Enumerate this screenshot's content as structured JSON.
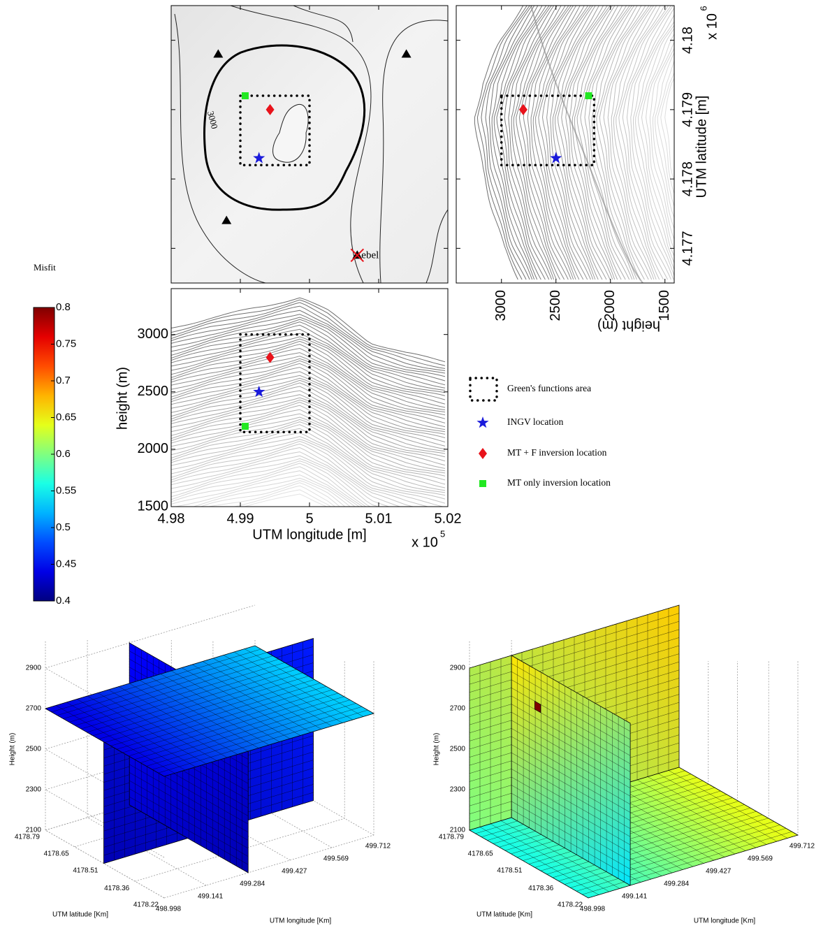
{
  "chart_data": [
    {
      "type": "map",
      "xlim": [
        4.98,
        5.02
      ],
      "ylim": [
        4.1765,
        4.1805
      ],
      "xticks": [
        4.98,
        4.99,
        5,
        5.01,
        5.02
      ],
      "yticks": [
        4.177,
        4.178,
        4.179,
        4.18
      ],
      "contour_label": "3000",
      "stations": {
        "color": "#000000",
        "x": [
          4.9868,
          5.014,
          4.988
        ],
        "y": [
          4.1798,
          4.1798,
          4.1774
        ]
      },
      "site": {
        "label": "ebel",
        "color": "#e8131b",
        "x": 5.0069,
        "y": 4.1769
      },
      "series": [
        {
          "name": "Green's functions area",
          "color": "#000000",
          "marker": "dotted-box",
          "x": [
            4.99,
            5
          ],
          "y": [
            4.1782,
            4.1792
          ]
        },
        {
          "name": "INGV location",
          "color": "#1a1adb",
          "marker": "star",
          "x": [
            4.9927
          ],
          "y": [
            4.1783
          ]
        },
        {
          "name": "MT + F inversion location",
          "color": "#e8131b",
          "marker": "diamond",
          "x": [
            4.9943
          ],
          "y": [
            4.179
          ]
        },
        {
          "name": "MT only inversion location",
          "color": "#22e822",
          "marker": "square",
          "x": [
            4.9907
          ],
          "y": [
            4.1792
          ]
        }
      ]
    },
    {
      "type": "section",
      "orientation": "vertical",
      "xlim": [
        3415,
        1415
      ],
      "ylim": [
        4.1765,
        4.1805
      ],
      "xticks": [
        3000,
        2500,
        2000,
        1500
      ],
      "yticks": [
        4.177,
        4.178,
        4.179,
        4.18
      ],
      "xlabel": "height (m)",
      "ylabel": "UTM latitude [m]",
      "scale_label": "x 10",
      "scale_exponent": "6",
      "series": [
        {
          "color": "#000000",
          "marker": "dotted-box",
          "x": [
            3000,
            2150
          ],
          "y": [
            4.1782,
            4.1792
          ]
        },
        {
          "color": "#1a1adb",
          "marker": "star",
          "x": [
            2500
          ],
          "y": [
            4.1783
          ]
        },
        {
          "color": "#e8131b",
          "marker": "diamond",
          "x": [
            2800
          ],
          "y": [
            4.179
          ]
        },
        {
          "color": "#22e822",
          "marker": "square",
          "x": [
            2200
          ],
          "y": [
            4.1792
          ]
        }
      ]
    },
    {
      "type": "section",
      "orientation": "horizontal",
      "xlim": [
        4.98,
        5.02
      ],
      "ylim": [
        1500,
        3400
      ],
      "xticks": [
        4.98,
        4.99,
        5,
        5.01,
        5.02
      ],
      "yticks": [
        1500,
        2000,
        2500,
        3000
      ],
      "xlabel": "UTM longitude [m]",
      "ylabel": "height (m)",
      "scale_label": "x 10",
      "scale_exponent": "5",
      "series": [
        {
          "color": "#000000",
          "marker": "dotted-box",
          "x": [
            4.99,
            5
          ],
          "y": [
            2150,
            3000
          ]
        },
        {
          "color": "#1a1adb",
          "marker": "star",
          "x": [
            4.9927
          ],
          "y": [
            2500
          ]
        },
        {
          "color": "#e8131b",
          "marker": "diamond",
          "x": [
            4.9943
          ],
          "y": [
            2800
          ]
        },
        {
          "color": "#22e822",
          "marker": "square",
          "x": [
            4.9907
          ],
          "y": [
            2200
          ]
        }
      ]
    },
    {
      "type": "colorbar",
      "title": "Misfit",
      "lim": [
        0.4,
        0.8
      ],
      "ticks": [
        0.4,
        0.45,
        0.5,
        0.55,
        0.6,
        0.65,
        0.7,
        0.75,
        0.8
      ],
      "colormap": "jet"
    },
    {
      "type": "slices3d",
      "xlabel": "UTM longitude [Km]",
      "ylabel": "UTM latitude [Km]",
      "zlabel": "Height (m)",
      "xlim": [
        498.998,
        499.712
      ],
      "ylim": [
        4178.22,
        4178.79
      ],
      "zlim": [
        2100,
        2900
      ],
      "xticks": [
        498.998,
        499.141,
        499.284,
        499.427,
        499.569,
        499.712
      ],
      "yticks": [
        4178.22,
        4178.36,
        4178.51,
        4178.65,
        4178.79
      ],
      "zticks": [
        2100,
        2300,
        2500,
        2700,
        2900
      ],
      "slices": [
        {
          "axis": "y",
          "value": 4178.51,
          "misfit": [
            0.42,
            0.46
          ]
        },
        {
          "axis": "x",
          "value": 499.284,
          "misfit": [
            0.42,
            0.45
          ]
        },
        {
          "axis": "z",
          "value": 2700,
          "misfit": [
            0.44,
            0.53
          ]
        }
      ]
    },
    {
      "type": "slices3d",
      "xlabel": "UTM longitude [Km]",
      "ylabel": "UTM latitude [Km]",
      "zlabel": "Height (m)",
      "xlim": [
        498.998,
        499.712
      ],
      "ylim": [
        4178.22,
        4178.79
      ],
      "zlim": [
        2100,
        2900
      ],
      "xticks": [
        498.998,
        499.141,
        499.284,
        499.427,
        499.569,
        499.712
      ],
      "yticks": [
        4178.22,
        4178.36,
        4178.51,
        4178.65,
        4178.79
      ],
      "zticks": [
        2100,
        2300,
        2500,
        2700,
        2900
      ],
      "slices": [
        {
          "axis": "y",
          "value": 4178.79,
          "misfit": [
            0.6,
            0.67
          ]
        },
        {
          "axis": "z",
          "value": 2100,
          "misfit": [
            0.56,
            0.64
          ]
        },
        {
          "axis": "x",
          "value": 499.141,
          "misfit": [
            0.54,
            0.66
          ]
        }
      ],
      "highlight": {
        "y": 4178.65,
        "z": 2700,
        "misfit": 0.8
      }
    }
  ]
}
